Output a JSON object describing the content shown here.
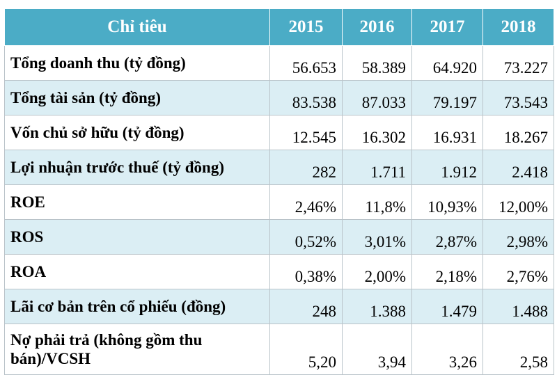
{
  "table": {
    "header": {
      "label": "Chỉ tiêu",
      "years": [
        "2015",
        "2016",
        "2017",
        "2018"
      ]
    },
    "rows": [
      {
        "label": "Tổng doanh thu (tỷ đồng)",
        "values": [
          "56.653",
          "58.389",
          "64.920",
          "73.227"
        ]
      },
      {
        "label": "Tổng tài sản  (tỷ đồng)",
        "values": [
          "83.538",
          "87.033",
          "79.197",
          "73.543"
        ]
      },
      {
        "label": "Vốn chủ sở hữu  (tỷ đồng)",
        "values": [
          "12.545",
          "16.302",
          "16.931",
          "18.267"
        ]
      },
      {
        "label": "Lợi nhuận trước thuế  (tỷ đồng)",
        "values": [
          "282",
          "1.711",
          "1.912",
          "2.418"
        ]
      },
      {
        "label": "ROE",
        "values": [
          "2,46%",
          "11,8%",
          "10,93%",
          "12,00%"
        ]
      },
      {
        "label": "ROS",
        "values": [
          "0,52%",
          "3,01%",
          "2,87%",
          "2,98%"
        ]
      },
      {
        "label": "ROA",
        "values": [
          "0,38%",
          "2,00%",
          "2,18%",
          "2,76%"
        ]
      },
      {
        "label": "Lãi cơ bản trên cổ phiếu (đồng)",
        "values": [
          "248",
          "1.388",
          "1.479",
          "1.488"
        ]
      },
      {
        "label": "Nợ phải trả (không gồm thu bán)/VCSH",
        "values": [
          "5,20",
          "3,94",
          "3,26",
          "2,58"
        ]
      }
    ],
    "colors": {
      "header_bg": "#4bacc6",
      "band_bg": "#dbeef4",
      "header_text": "#ffffff"
    }
  }
}
